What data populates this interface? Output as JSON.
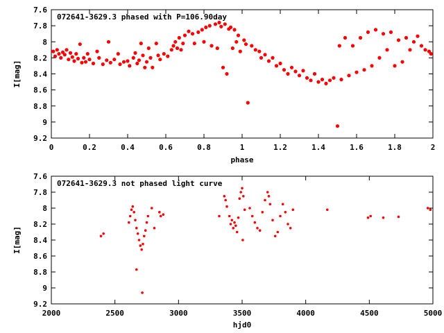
{
  "chart_data": [
    {
      "type": "scatter",
      "title": "072641-3629.3 phased with P=106.90day",
      "xlabel": "phase",
      "ylabel": "I[mag]",
      "xlim": [
        0,
        2
      ],
      "ylim": [
        7.6,
        9.2
      ],
      "y_inverted": true,
      "xticks": [
        "0",
        "0.2",
        "0.4",
        "0.6",
        "0.8",
        "1",
        "1.2",
        "1.4",
        "1.6",
        "1.8",
        "2"
      ],
      "yticks": [
        "7.6",
        "7.8",
        "8",
        "8.2",
        "8.4",
        "8.6",
        "8.8",
        "9",
        "9.2"
      ],
      "marker_color": "#ff0000",
      "series": [
        {
          "values": [
            [
              0.01,
              8.12
            ],
            [
              0.02,
              8.18
            ],
            [
              0.03,
              8.1
            ],
            [
              0.04,
              8.15
            ],
            [
              0.05,
              8.2
            ],
            [
              0.06,
              8.13
            ],
            [
              0.07,
              8.16
            ],
            [
              0.08,
              8.1
            ],
            [
              0.09,
              8.22
            ],
            [
              0.1,
              8.14
            ],
            [
              0.11,
              8.19
            ],
            [
              0.12,
              8.24
            ],
            [
              0.13,
              8.15
            ],
            [
              0.14,
              8.21
            ],
            [
              0.15,
              8.03
            ],
            [
              0.16,
              8.26
            ],
            [
              0.17,
              8.2
            ],
            [
              0.18,
              8.25
            ],
            [
              0.19,
              8.15
            ],
            [
              0.2,
              8.22
            ],
            [
              0.22,
              8.27
            ],
            [
              0.24,
              8.12
            ],
            [
              0.25,
              8.2
            ],
            [
              0.27,
              8.28
            ],
            [
              0.29,
              8.23
            ],
            [
              0.3,
              8.0
            ],
            [
              0.31,
              8.26
            ],
            [
              0.33,
              8.22
            ],
            [
              0.35,
              8.15
            ],
            [
              0.36,
              8.28
            ],
            [
              0.38,
              8.25
            ],
            [
              0.4,
              8.24
            ],
            [
              0.41,
              8.3
            ],
            [
              0.43,
              8.2
            ],
            [
              0.44,
              8.14
            ],
            [
              0.45,
              8.27
            ],
            [
              0.46,
              8.23
            ],
            [
              0.47,
              8.02
            ],
            [
              0.48,
              8.17
            ],
            [
              0.49,
              8.32
            ],
            [
              0.5,
              8.25
            ],
            [
              0.51,
              8.08
            ],
            [
              0.52,
              8.2
            ],
            [
              0.53,
              8.32
            ],
            [
              0.55,
              8.02
            ],
            [
              0.56,
              8.17
            ],
            [
              0.57,
              8.22
            ],
            [
              0.59,
              8.15
            ],
            [
              0.61,
              8.18
            ],
            [
              0.63,
              8.1
            ],
            [
              0.64,
              8.05
            ],
            [
              0.65,
              8.0
            ],
            [
              0.66,
              8.08
            ],
            [
              0.67,
              7.95
            ],
            [
              0.68,
              8.1
            ],
            [
              0.69,
              8.02
            ],
            [
              0.7,
              7.92
            ],
            [
              0.72,
              7.87
            ],
            [
              0.74,
              7.9
            ],
            [
              0.75,
              8.02
            ],
            [
              0.77,
              7.88
            ],
            [
              0.79,
              7.85
            ],
            [
              0.8,
              8.0
            ],
            [
              0.81,
              7.82
            ],
            [
              0.83,
              7.8
            ],
            [
              0.84,
              8.05
            ],
            [
              0.86,
              7.78
            ],
            [
              0.87,
              8.08
            ],
            [
              0.88,
              7.76
            ],
            [
              0.89,
              7.81
            ],
            [
              0.9,
              8.32
            ],
            [
              0.91,
              7.78
            ],
            [
              0.92,
              8.4
            ],
            [
              0.93,
              7.84
            ],
            [
              0.94,
              7.82
            ],
            [
              0.95,
              8.08
            ],
            [
              0.96,
              7.85
            ],
            [
              0.97,
              8.0
            ],
            [
              0.98,
              7.92
            ],
            [
              0.99,
              8.12
            ],
            [
              1.01,
              7.98
            ],
            [
              1.02,
              8.03
            ],
            [
              1.03,
              8.76
            ],
            [
              1.05,
              8.05
            ],
            [
              1.07,
              8.1
            ],
            [
              1.09,
              8.12
            ],
            [
              1.1,
              8.2
            ],
            [
              1.12,
              8.16
            ],
            [
              1.14,
              8.24
            ],
            [
              1.16,
              8.2
            ],
            [
              1.18,
              8.3
            ],
            [
              1.2,
              8.27
            ],
            [
              1.22,
              8.35
            ],
            [
              1.24,
              8.4
            ],
            [
              1.26,
              8.32
            ],
            [
              1.28,
              8.37
            ],
            [
              1.3,
              8.42
            ],
            [
              1.32,
              8.36
            ],
            [
              1.34,
              8.45
            ],
            [
              1.36,
              8.48
            ],
            [
              1.38,
              8.4
            ],
            [
              1.4,
              8.5
            ],
            [
              1.42,
              8.47
            ],
            [
              1.44,
              8.52
            ],
            [
              1.46,
              8.48
            ],
            [
              1.48,
              8.45
            ],
            [
              1.5,
              9.05
            ],
            [
              1.51,
              8.05
            ],
            [
              1.52,
              8.47
            ],
            [
              1.54,
              7.95
            ],
            [
              1.56,
              8.42
            ],
            [
              1.58,
              8.05
            ],
            [
              1.6,
              8.38
            ],
            [
              1.62,
              7.95
            ],
            [
              1.64,
              8.35
            ],
            [
              1.66,
              7.88
            ],
            [
              1.68,
              8.3
            ],
            [
              1.7,
              7.85
            ],
            [
              1.72,
              8.2
            ],
            [
              1.74,
              7.9
            ],
            [
              1.76,
              8.1
            ],
            [
              1.78,
              7.88
            ],
            [
              1.8,
              8.3
            ],
            [
              1.82,
              7.98
            ],
            [
              1.84,
              8.25
            ],
            [
              1.86,
              7.95
            ],
            [
              1.88,
              8.1
            ],
            [
              1.9,
              8.0
            ],
            [
              1.92,
              7.93
            ],
            [
              1.94,
              8.05
            ],
            [
              1.96,
              8.1
            ],
            [
              1.98,
              8.12
            ],
            [
              1.99,
              8.15
            ]
          ]
        }
      ]
    },
    {
      "type": "scatter",
      "title": "072641-3629.3 not phased light curve",
      "xlabel": "hjd0",
      "ylabel": "I[mag]",
      "xlim": [
        2000,
        5000
      ],
      "ylim": [
        7.6,
        9.2
      ],
      "y_inverted": true,
      "xticks": [
        "2000",
        "2500",
        "3000",
        "3500",
        "4000",
        "4500",
        "5000"
      ],
      "yticks": [
        "7.6",
        "7.8",
        "8",
        "8.2",
        "8.4",
        "8.6",
        "8.8",
        "9",
        "9.2"
      ],
      "marker_color": "#ff0000",
      "series": [
        {
          "values": [
            [
              2390,
              8.35
            ],
            [
              2410,
              8.32
            ],
            [
              2610,
              8.18
            ],
            [
              2620,
              8.1
            ],
            [
              2630,
              8.02
            ],
            [
              2640,
              7.98
            ],
            [
              2650,
              8.05
            ],
            [
              2660,
              8.15
            ],
            [
              2670,
              8.25
            ],
            [
              2680,
              8.32
            ],
            [
              2690,
              8.4
            ],
            [
              2700,
              8.47
            ],
            [
              2710,
              8.52
            ],
            [
              2715,
              9.06
            ],
            [
              2720,
              8.45
            ],
            [
              2730,
              8.35
            ],
            [
              2740,
              8.28
            ],
            [
              2750,
              8.18
            ],
            [
              2760,
              8.1
            ],
            [
              2790,
              8.0
            ],
            [
              2810,
              8.25
            ],
            [
              2850,
              8.05
            ],
            [
              2860,
              8.1
            ],
            [
              2880,
              8.08
            ],
            [
              2670,
              8.77
            ],
            [
              3320,
              8.1
            ],
            [
              3360,
              7.85
            ],
            [
              3370,
              7.9
            ],
            [
              3380,
              7.98
            ],
            [
              3400,
              8.1
            ],
            [
              3410,
              8.2
            ],
            [
              3420,
              8.15
            ],
            [
              3430,
              8.25
            ],
            [
              3440,
              8.18
            ],
            [
              3450,
              8.22
            ],
            [
              3460,
              8.3
            ],
            [
              3470,
              8.12
            ],
            [
              3480,
              7.88
            ],
            [
              3490,
              7.8
            ],
            [
              3500,
              7.75
            ],
            [
              3505,
              8.4
            ],
            [
              3510,
              7.85
            ],
            [
              3520,
              8.02
            ],
            [
              3560,
              8.0
            ],
            [
              3580,
              8.1
            ],
            [
              3600,
              8.18
            ],
            [
              3620,
              8.25
            ],
            [
              3640,
              8.28
            ],
            [
              3660,
              8.05
            ],
            [
              3680,
              7.9
            ],
            [
              3700,
              7.8
            ],
            [
              3710,
              7.85
            ],
            [
              3720,
              7.95
            ],
            [
              3740,
              8.15
            ],
            [
              3760,
              8.35
            ],
            [
              3780,
              8.3
            ],
            [
              3800,
              8.1
            ],
            [
              3820,
              7.95
            ],
            [
              3840,
              8.05
            ],
            [
              3860,
              8.2
            ],
            [
              3880,
              8.25
            ],
            [
              3900,
              8.02
            ],
            [
              4170,
              8.02
            ],
            [
              4490,
              8.12
            ],
            [
              4510,
              8.1
            ],
            [
              4610,
              8.12
            ],
            [
              4730,
              8.11
            ],
            [
              4960,
              8.0
            ],
            [
              4980,
              8.02
            ]
          ]
        }
      ]
    }
  ]
}
